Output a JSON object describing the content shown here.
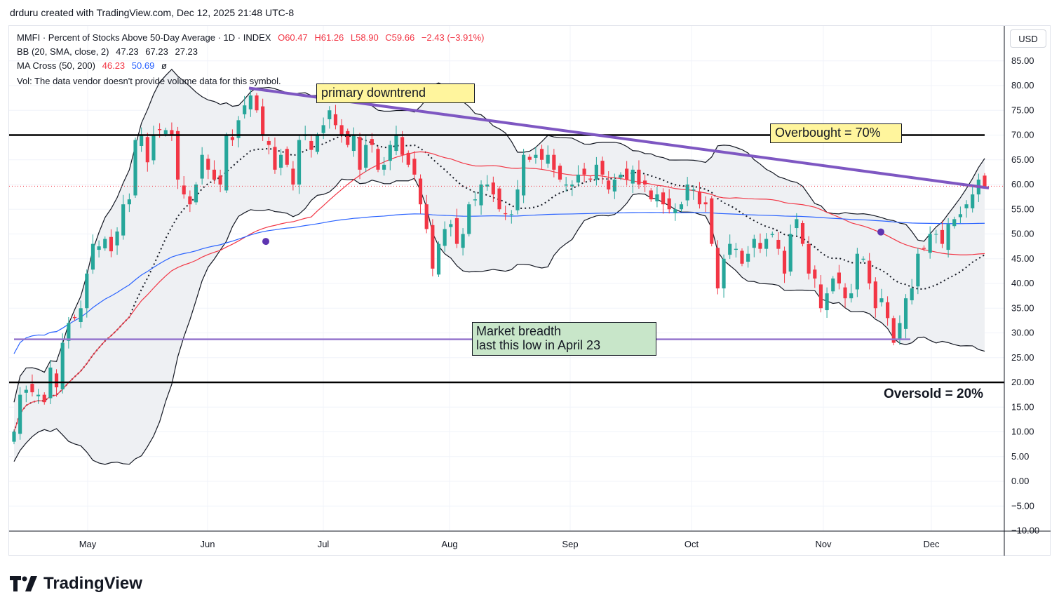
{
  "header": {
    "created_by": "drduru created with TradingView.com, Dec 12, 2025 21:48 UTC-8"
  },
  "legend": {
    "symbol_line": "MMFI · Percent of Stocks Above 50-Day Average · 1D · INDEX",
    "ohlc": {
      "o": "O60.47",
      "h": "H61.26",
      "l": "L58.90",
      "c": "C59.66",
      "chg": "−2.43 (−3.91%)"
    },
    "bb_label": "BB (20, SMA, close, 2)",
    "bb_values": [
      "47.23",
      "67.23",
      "27.23"
    ],
    "ma_label": "MA Cross (50, 200)",
    "ma_values": [
      "46.23",
      "50.69",
      "ø"
    ],
    "vol_note": "Vol: The data vendor doesn't provide volume data for this symbol."
  },
  "currency_button": "USD",
  "brand": {
    "name": "TradingView"
  },
  "annotations": {
    "downtrend": "primary downtrend",
    "overbought": "Overbought = 70%",
    "breadth_line1": "Market breadth",
    "breadth_line2": "last this low in April 23",
    "oversold": "Oversold = 20%"
  },
  "colors": {
    "up": "#26a69a",
    "down": "#f23645",
    "ma50": "#f23645",
    "ma200": "#2962ff",
    "trendline": "#7e57c2",
    "support_line": "#9575cd",
    "bb_fill": "#eef0f3"
  },
  "chart_data": {
    "type": "candlestick",
    "title": "MMFI · Percent of Stocks Above 50-Day Average · 1D · INDEX",
    "y_axis": {
      "ylim": [
        -10,
        90
      ],
      "ticks": [
        "85.00",
        "80.00",
        "75.00",
        "70.00",
        "65.00",
        "60.00",
        "55.00",
        "50.00",
        "45.00",
        "40.00",
        "35.00",
        "30.00",
        "25.00",
        "20.00",
        "15.00",
        "10.00",
        "5.00",
        "0.00",
        "−5.00",
        "−10.00"
      ]
    },
    "x_axis": {
      "month_labels": [
        "May",
        "Jun",
        "Jul",
        "Aug",
        "Sep",
        "Oct",
        "Nov",
        "Dec"
      ]
    },
    "last_close": 59.66,
    "reference_lines": [
      {
        "name": "Overbought",
        "value": 70
      },
      {
        "name": "Oversold",
        "value": 20
      },
      {
        "name": "Market breadth low",
        "value": 28.7
      }
    ],
    "trendline": {
      "name": "primary downtrend",
      "from": {
        "date": "Jun 13",
        "value": 79.5
      },
      "to": {
        "date": "Dec 12",
        "value": 59.3
      }
    },
    "closes": [
      10.0,
      17.5,
      18.5,
      18.0,
      17.5,
      16.0,
      23.0,
      19.0,
      28.0,
      32.0,
      33.0,
      35.0,
      42.0,
      48.0,
      47.5,
      49.0,
      46.5,
      50.5,
      56.0,
      57.0,
      69.0,
      70.0,
      64.5,
      70.0,
      71.0,
      71.0,
      70.0,
      61.0,
      58.0,
      56.0,
      60.0,
      66.0,
      63.0,
      61.0,
      60.0,
      70.0,
      69.0,
      73.0,
      76.0,
      78.0,
      75.0,
      70.0,
      68.0,
      63.0,
      66.0,
      64.0,
      60.0,
      69.0,
      70.0,
      67.0,
      70.0,
      72.0,
      75.0,
      72.0,
      70.0,
      68.0,
      70.0,
      63.0,
      68.0,
      68.0,
      63.0,
      64.0,
      68.0,
      70.0,
      66.0,
      64.0,
      62.0,
      56.0,
      51.0,
      43.0,
      48.0,
      51.0,
      52.0,
      48.0,
      50.0,
      56.0,
      57.0,
      60.0,
      60.0,
      58.0,
      55.0,
      54.0,
      54.0,
      59.0,
      66.0,
      65.0,
      66.0,
      65.0,
      66.0,
      63.0,
      61.0,
      60.0,
      60.0,
      62.0,
      62.0,
      61.0,
      64.0,
      62.0,
      59.0,
      61.0,
      62.0,
      61.0,
      63.0,
      60.0,
      60.0,
      57.0,
      58.0,
      56.0,
      55.0,
      55.0,
      56.0,
      60.0,
      59.0,
      56.0,
      56.0,
      48.0,
      39.0,
      45.0,
      48.0,
      47.0,
      44.0,
      46.0,
      49.0,
      47.0,
      49.0,
      50.0,
      47.0,
      42.0,
      50.0,
      53.0,
      48.0,
      42.0,
      41.0,
      35.0,
      38.0,
      41.0,
      40.0,
      37.0,
      38.0,
      46.0,
      45.0,
      40.0,
      35.0,
      37.0,
      33.0,
      28.0,
      32.0,
      37.0,
      39.0,
      46.0,
      47.0,
      50.0,
      50.0,
      48.0,
      52.0,
      53.0,
      54.0,
      56.0,
      58.0,
      61.0,
      59.66
    ]
  }
}
